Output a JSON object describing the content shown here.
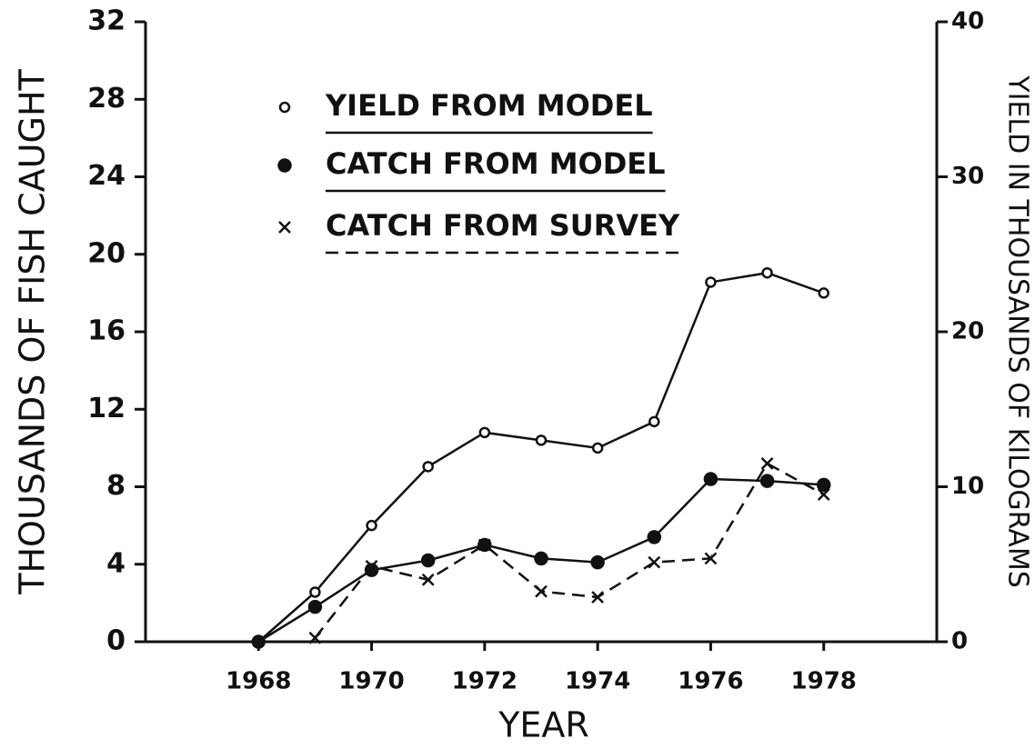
{
  "chart_data": {
    "type": "line",
    "xlabel": "YEAR",
    "ylabel": "THOUSANDS OF FISH CAUGHT",
    "y2label": "YIELD IN THOUSANDS OF KILOGRAMS",
    "x": [
      1968,
      1969,
      1970,
      1971,
      1972,
      1973,
      1974,
      1975,
      1976,
      1977,
      1978
    ],
    "xlim": [
      1966,
      1980
    ],
    "xticks": [
      1968,
      1970,
      1972,
      1974,
      1976,
      1978
    ],
    "ylim": [
      0,
      32
    ],
    "yticks": [
      0,
      4,
      8,
      12,
      16,
      20,
      24,
      28,
      32
    ],
    "y2lim": [
      0,
      40
    ],
    "y2ticks": [
      0,
      10,
      20,
      30,
      40
    ],
    "series": [
      {
        "name": "YIELD FROM MODEL",
        "color": "#111111",
        "marker": "open-circle",
        "dash": false,
        "axis": "y2",
        "values": [
          0,
          3.2,
          7.5,
          11.3,
          13.5,
          13.0,
          12.5,
          14.2,
          23.2,
          23.8,
          22.5
        ]
      },
      {
        "name": "CATCH FROM MODEL",
        "color": "#111111",
        "marker": "filled-circle",
        "dash": false,
        "values": [
          0,
          1.8,
          3.7,
          4.2,
          5.0,
          4.3,
          4.1,
          5.4,
          8.4,
          8.3,
          8.1
        ]
      },
      {
        "name": "CATCH FROM SURVEY",
        "color": "#111111",
        "marker": "x",
        "dash": true,
        "values": [
          null,
          0.2,
          3.9,
          3.2,
          5.0,
          2.6,
          2.3,
          4.1,
          4.3,
          9.2,
          7.6
        ]
      }
    ]
  }
}
